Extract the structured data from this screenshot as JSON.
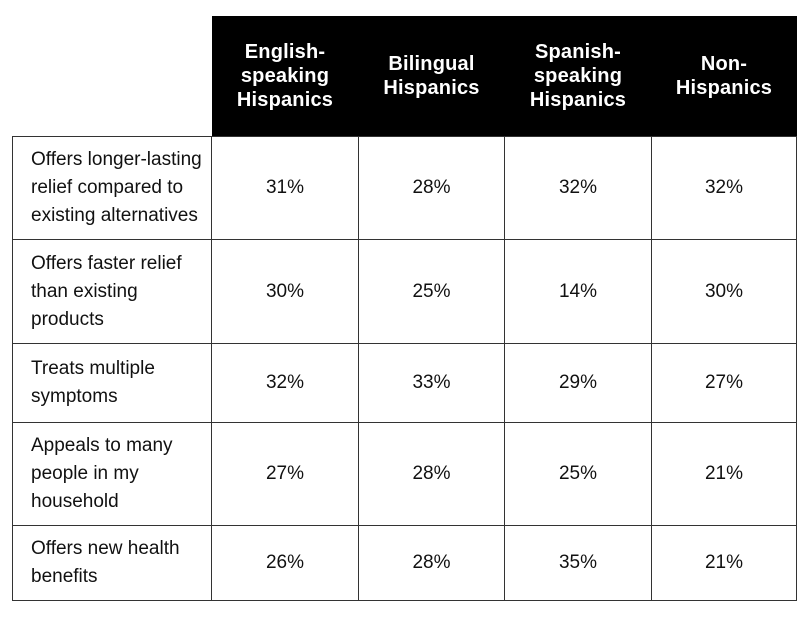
{
  "chart_data": {
    "type": "table",
    "columns": [
      "English-\nspeaking\nHispanics",
      "Bilingual\nHispanics",
      "Spanish-\nspeaking\nHispanics",
      "Non-\nHispanics"
    ],
    "rows": [
      {
        "label": "Offers longer-lasting\nrelief compared to\nexisting alternatives",
        "values": [
          "31%",
          "28%",
          "32%",
          "32%"
        ]
      },
      {
        "label": "Offers faster relief\nthan existing\nproducts",
        "values": [
          "30%",
          "25%",
          "14%",
          "30%"
        ]
      },
      {
        "label": "Treats multiple\nsymptoms",
        "values": [
          "32%",
          "33%",
          "29%",
          "27%"
        ]
      },
      {
        "label": "Appeals to many\npeople in my\nhousehold",
        "values": [
          "27%",
          "28%",
          "25%",
          "21%"
        ]
      },
      {
        "label": "Offers new health\nbenefits",
        "values": [
          "26%",
          "28%",
          "35%",
          "21%"
        ]
      }
    ],
    "colors": {
      "header_bg": "#000000",
      "header_text": "#ffffff",
      "border": "#333333"
    }
  }
}
